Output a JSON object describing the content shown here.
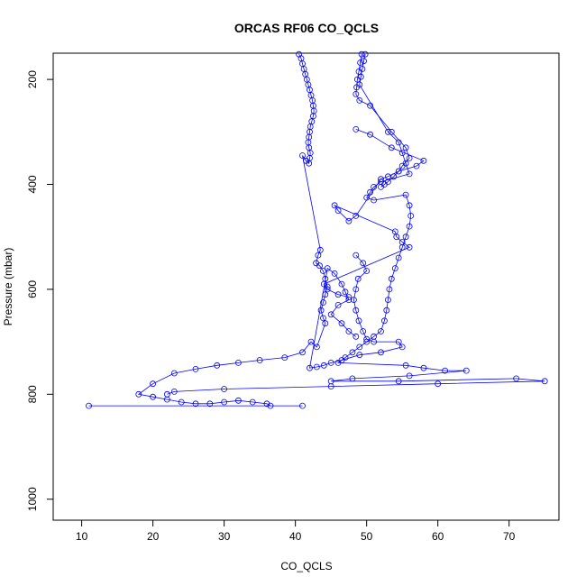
{
  "chart_data": {
    "type": "line",
    "title": "ORCAS RF06 CO_QCLS",
    "xlabel": "CO_QCLS",
    "ylabel": "Pressure (mbar)",
    "xlim": [
      6,
      77
    ],
    "ylim": [
      1040,
      150
    ],
    "y_reversed": true,
    "grid": false,
    "x_ticks": [
      "10",
      "20",
      "30",
      "40",
      "50",
      "60",
      "70"
    ],
    "y_ticks": [
      "200",
      "400",
      "600",
      "800",
      "1000"
    ],
    "series_color": "#0000ff",
    "series": [
      {
        "points": [
          [
            40.5,
            152
          ],
          [
            40.8,
            160
          ],
          [
            41.0,
            170
          ],
          [
            41.2,
            180
          ],
          [
            41.4,
            190
          ],
          [
            41.6,
            200
          ],
          [
            41.8,
            210
          ],
          [
            42.0,
            220
          ],
          [
            42.2,
            230
          ],
          [
            42.4,
            240
          ],
          [
            42.5,
            250
          ],
          [
            42.6,
            260
          ],
          [
            42.5,
            270
          ],
          [
            42.3,
            280
          ],
          [
            42.1,
            290
          ],
          [
            42.0,
            300
          ],
          [
            41.9,
            310
          ],
          [
            41.8,
            320
          ],
          [
            41.9,
            330
          ],
          [
            42.1,
            340
          ],
          [
            42.0,
            350
          ],
          [
            41.9,
            360
          ],
          [
            41.5,
            355
          ],
          [
            41.0,
            345
          ],
          [
            43.5,
            525
          ],
          [
            43.2,
            535
          ],
          [
            42.9,
            550
          ],
          [
            43.4,
            555
          ],
          [
            43.9,
            565
          ],
          [
            44.2,
            580
          ],
          [
            44.5,
            595
          ],
          [
            44.2,
            610
          ],
          [
            43.9,
            625
          ],
          [
            43.6,
            640
          ],
          [
            43.9,
            655
          ],
          [
            44.2,
            665
          ],
          [
            43.0,
            710
          ],
          [
            42.2,
            700
          ],
          [
            41.0,
            720
          ],
          [
            38.5,
            730
          ],
          [
            35.0,
            735
          ],
          [
            32.0,
            740
          ],
          [
            29.0,
            745
          ],
          [
            26.0,
            752
          ],
          [
            23.0,
            760
          ],
          [
            20.0,
            780
          ],
          [
            18.0,
            800
          ],
          [
            20.0,
            805
          ],
          [
            22.0,
            810
          ],
          [
            24.0,
            815
          ],
          [
            26.0,
            818
          ],
          [
            28.0,
            818
          ],
          [
            30.0,
            815
          ],
          [
            32.0,
            812
          ],
          [
            34.0,
            815
          ],
          [
            36.0,
            818
          ],
          [
            36.5,
            822
          ],
          [
            11.0,
            822
          ],
          [
            41.0,
            822
          ]
        ]
      },
      {
        "points": [
          [
            49.8,
            152
          ],
          [
            49.6,
            165
          ],
          [
            49.4,
            180
          ],
          [
            49.2,
            195
          ],
          [
            49.0,
            210
          ],
          [
            53.0,
            300
          ],
          [
            54.5,
            320
          ],
          [
            55.0,
            340
          ],
          [
            55.5,
            360
          ],
          [
            56.0,
            380
          ],
          [
            52.0,
            395
          ],
          [
            51.0,
            405
          ],
          [
            50.5,
            415
          ],
          [
            50.0,
            425
          ],
          [
            51.0,
            430
          ],
          [
            55.5,
            420
          ],
          [
            56.0,
            440
          ],
          [
            56.2,
            460
          ],
          [
            56.0,
            480
          ],
          [
            55.5,
            500
          ],
          [
            55.0,
            520
          ],
          [
            54.5,
            540
          ],
          [
            54.0,
            560
          ],
          [
            53.5,
            580
          ],
          [
            53.2,
            600
          ],
          [
            53.0,
            620
          ],
          [
            52.8,
            640
          ],
          [
            52.5,
            660
          ],
          [
            52.0,
            680
          ],
          [
            51.0,
            690
          ],
          [
            50.0,
            700
          ],
          [
            49.0,
            710
          ],
          [
            48.0,
            720
          ],
          [
            47.0,
            730
          ],
          [
            46.0,
            740
          ],
          [
            55.5,
            745
          ],
          [
            58.0,
            750
          ],
          [
            61.0,
            755
          ],
          [
            64.0,
            755
          ],
          [
            56.0,
            765
          ],
          [
            48.0,
            770
          ],
          [
            45.0,
            775
          ],
          [
            54.5,
            775
          ],
          [
            71.0,
            770
          ],
          [
            75.0,
            775
          ],
          [
            60.0,
            780
          ],
          [
            45.0,
            785
          ],
          [
            30.0,
            790
          ],
          [
            23.0,
            795
          ],
          [
            22.0,
            800
          ]
        ]
      },
      {
        "points": [
          [
            48.5,
            535
          ],
          [
            49.5,
            550
          ],
          [
            50.0,
            565
          ],
          [
            48.8,
            580
          ],
          [
            48.5,
            600
          ],
          [
            48.2,
            620
          ],
          [
            48.5,
            640
          ],
          [
            48.9,
            660
          ],
          [
            49.5,
            680
          ],
          [
            50.0,
            695
          ],
          [
            51.0,
            700
          ],
          [
            54.5,
            700
          ],
          [
            55.0,
            710
          ],
          [
            52.0,
            720
          ],
          [
            49.0,
            725
          ],
          [
            46.5,
            735
          ],
          [
            45.0,
            740
          ],
          [
            44.0,
            745
          ],
          [
            43.0,
            748
          ],
          [
            42.0,
            750
          ],
          [
            44.5,
            560
          ],
          [
            45.5,
            570
          ],
          [
            46.5,
            590
          ],
          [
            47.0,
            605
          ],
          [
            47.5,
            620
          ],
          [
            46.0,
            630
          ],
          [
            45.0,
            648
          ],
          [
            46.5,
            665
          ],
          [
            47.5,
            680
          ],
          [
            48.5,
            690
          ]
        ]
      },
      {
        "points": [
          [
            48.5,
            295
          ],
          [
            50.5,
            305
          ],
          [
            53.5,
            330
          ],
          [
            58.0,
            355
          ],
          [
            57.0,
            365
          ],
          [
            54.5,
            375
          ],
          [
            53.0,
            385
          ],
          [
            52.0,
            390
          ],
          [
            48.5,
            460
          ],
          [
            47.5,
            470
          ],
          [
            46.0,
            450
          ],
          [
            45.5,
            440
          ],
          [
            54.0,
            490
          ],
          [
            54.2,
            500
          ],
          [
            55.0,
            510
          ],
          [
            56.0,
            520
          ],
          [
            44.0,
            590
          ],
          [
            44.5,
            600
          ],
          [
            46.0,
            610
          ],
          [
            47.5,
            615
          ]
        ]
      },
      {
        "points": [
          [
            49.3,
            152
          ],
          [
            49.1,
            168
          ],
          [
            48.9,
            185
          ],
          [
            48.7,
            200
          ],
          [
            48.6,
            215
          ],
          [
            48.5,
            228
          ],
          [
            49.0,
            240
          ],
          [
            50.5,
            250
          ],
          [
            53.5,
            300
          ],
          [
            55.5,
            330
          ],
          [
            56.0,
            350
          ],
          [
            55.0,
            365
          ],
          [
            54.5,
            375
          ],
          [
            53.8,
            385
          ],
          [
            53.0,
            395
          ],
          [
            52.5,
            400
          ],
          [
            52.0,
            405
          ]
        ]
      }
    ]
  }
}
